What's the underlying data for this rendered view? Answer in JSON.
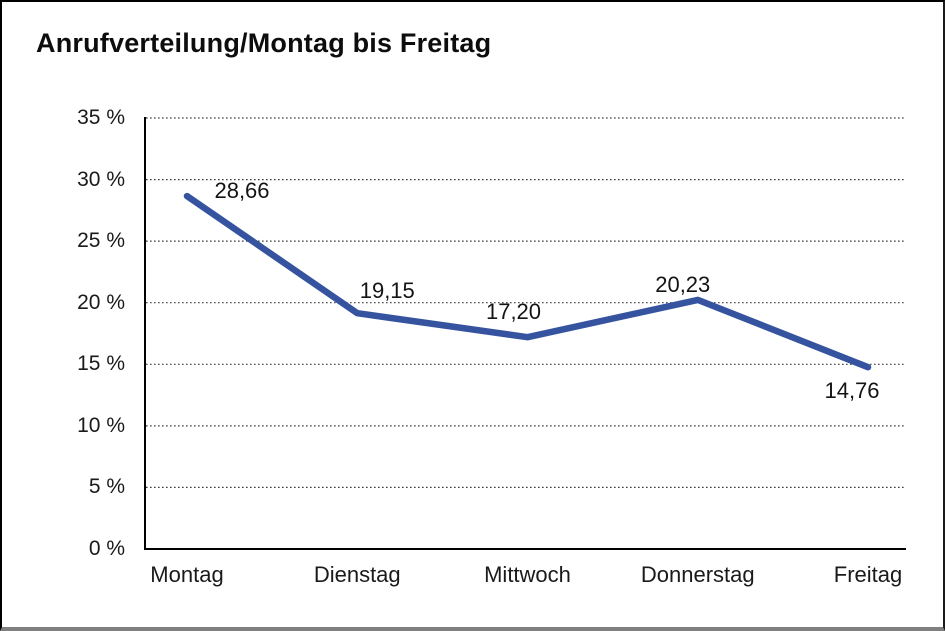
{
  "page": {
    "title": "Anrufverteilung/Montag bis Freitag"
  },
  "chart_data": {
    "type": "line",
    "title": "Anrufverteilung/Montag bis Freitag",
    "categories": [
      "Montag",
      "Dienstag",
      "Mittwoch",
      "Donnerstag",
      "Freitag"
    ],
    "series": [
      {
        "name": "Anrufverteilung",
        "values": [
          28.66,
          19.15,
          17.2,
          20.23,
          14.76
        ],
        "value_labels": [
          "28,66",
          "19,15",
          "17,20",
          "20,23",
          "14,76"
        ]
      }
    ],
    "xlabel": "",
    "ylabel": "",
    "ylim": [
      0,
      35
    ],
    "ytick_step": 5,
    "ytick_labels_top_to_bottom": [
      "35 %",
      "30 %",
      "25 %",
      "20 %",
      "15 %",
      "10 %",
      "5 %",
      "0 %"
    ],
    "grid": "horizontal-dotted",
    "legend": "none",
    "colors": {
      "line": "#35539F",
      "axis": "#000000",
      "gridline": "#3c3c3c",
      "text": "#1a1a1a",
      "background": "#ffffff",
      "frame_shadow": "#808080"
    }
  }
}
